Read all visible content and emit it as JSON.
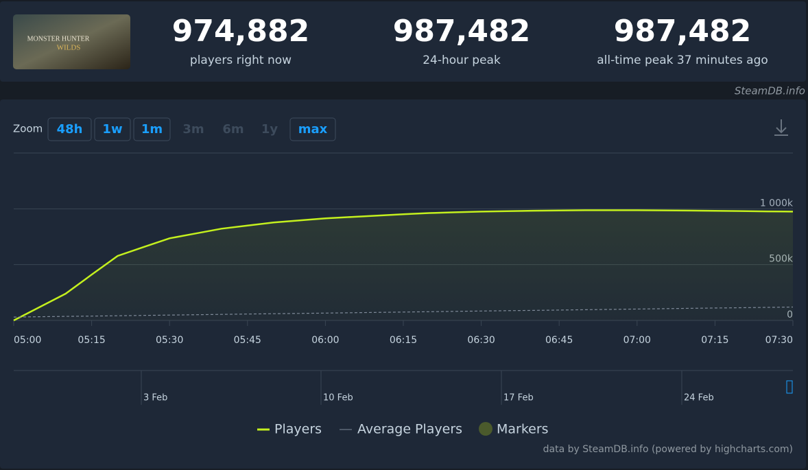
{
  "header": {
    "logo_lines": [
      "MONSTER HUNTER",
      "WILDS"
    ],
    "stats": [
      {
        "value": "974,882",
        "label": "players right now"
      },
      {
        "value": "987,482",
        "label": "24-hour peak"
      },
      {
        "value": "987,482",
        "label": "all-time peak 37 minutes ago"
      }
    ],
    "brand": "SteamDB.info"
  },
  "zoom": {
    "label": "Zoom",
    "buttons": [
      {
        "text": "48h",
        "enabled": true
      },
      {
        "text": "1w",
        "enabled": true
      },
      {
        "text": "1m",
        "enabled": true
      },
      {
        "text": "3m",
        "enabled": false
      },
      {
        "text": "6m",
        "enabled": false
      },
      {
        "text": "1y",
        "enabled": false
      },
      {
        "text": "max",
        "enabled": true
      }
    ]
  },
  "chart_data": {
    "type": "line",
    "x": [
      "05:00",
      null,
      null,
      "05:15",
      null,
      null,
      "05:30",
      null,
      null,
      "05:45",
      null,
      null,
      "06:00",
      null,
      null,
      "06:15",
      null,
      null,
      "06:30",
      null,
      null,
      "06:45",
      null,
      null,
      "07:00",
      null,
      null,
      "07:15",
      null,
      null,
      "07:30"
    ],
    "series": [
      {
        "name": "Players",
        "color": "#c4f01e",
        "values": [
          0,
          120000,
          240000,
          410000,
          578000,
          657000,
          736000,
          779000,
          822000,
          850000,
          877000,
          896000,
          914000,
          927000,
          939000,
          951000,
          962000,
          969000,
          975000,
          979000,
          983000,
          985000,
          987000,
          987482,
          987000,
          986000,
          984000,
          982000,
          980000,
          977000,
          974882
        ]
      },
      {
        "name": "Average Players",
        "color": "#7f8a99",
        "dashed": true,
        "values": [
          30000,
          33000,
          36000,
          39000,
          42000,
          45000,
          48000,
          51000,
          54000,
          57000,
          60000,
          63000,
          66000,
          69000,
          72000,
          75000,
          78000,
          81000,
          84000,
          87000,
          90000,
          93000,
          96000,
          99000,
          102000,
          105000,
          108000,
          111000,
          114000,
          117000,
          120000
        ]
      }
    ],
    "markers_label": "Markers",
    "markers_color": "#4b5a2c",
    "ylim": [
      0,
      1500000
    ],
    "yticks": [
      0,
      {
        "value": 500000,
        "label": "500k"
      },
      {
        "value": 1000000,
        "label": "1 000k"
      }
    ],
    "grid": true,
    "navigator_labels": [
      "3 Feb",
      "10 Feb",
      "17 Feb",
      "24 Feb"
    ],
    "credits": "data by SteamDB.info (powered by highcharts.com)"
  }
}
